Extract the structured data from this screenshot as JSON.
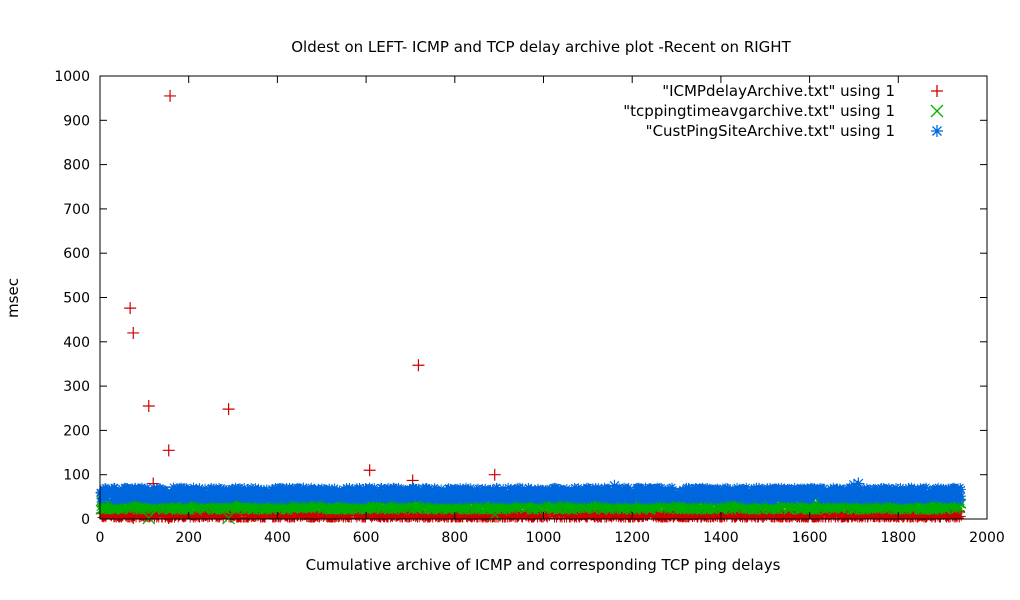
{
  "chart_data": {
    "type": "scatter",
    "title": "Oldest on LEFT- ICMP and TCP delay archive plot -Recent on RIGHT",
    "xlabel": "Cumulative archive of ICMP and corresponding TCP ping delays",
    "ylabel": "msec",
    "xlim": [
      0,
      2000
    ],
    "ylim": [
      0,
      1000
    ],
    "x_ticks": [
      0,
      200,
      400,
      600,
      800,
      1000,
      1200,
      1400,
      1600,
      1800,
      2000
    ],
    "y_ticks": [
      0,
      100,
      200,
      300,
      400,
      500,
      600,
      700,
      800,
      900,
      1000
    ],
    "x_tick_labels": [
      "0",
      "200",
      "400",
      "600",
      "800",
      "1000",
      "1200",
      "1400",
      "1600",
      "1800",
      "2000"
    ],
    "y_tick_labels": [
      "0",
      "100",
      "200",
      "300",
      "400",
      "500",
      "600",
      "700",
      "800",
      "900",
      "1000"
    ],
    "grid": false,
    "legend_position": "top-right",
    "series": [
      {
        "name": "\"ICMPdelayArchive.txt\" using 1",
        "marker": "plus",
        "color": "#cc0000",
        "band": {
          "x_start": 0,
          "x_end": 1940,
          "y_min": 0,
          "y_max": 20
        },
        "outliers": [
          {
            "x": 68,
            "y": 476
          },
          {
            "x": 75,
            "y": 420
          },
          {
            "x": 110,
            "y": 255
          },
          {
            "x": 155,
            "y": 155
          },
          {
            "x": 158,
            "y": 955
          },
          {
            "x": 290,
            "y": 248
          },
          {
            "x": 120,
            "y": 80
          },
          {
            "x": 608,
            "y": 110
          },
          {
            "x": 705,
            "y": 87
          },
          {
            "x": 718,
            "y": 347
          },
          {
            "x": 890,
            "y": 100
          },
          {
            "x": 75,
            "y": 0
          },
          {
            "x": 155,
            "y": 0
          }
        ]
      },
      {
        "name": "\"tcppingtimeavgarchive.txt\" using 1",
        "marker": "cross",
        "color": "#00b000",
        "band": {
          "x_start": 0,
          "x_end": 1940,
          "y_min": 20,
          "y_max": 42
        },
        "outliers": [
          {
            "x": 110,
            "y": 0
          },
          {
            "x": 290,
            "y": 0
          },
          {
            "x": 890,
            "y": 10
          }
        ]
      },
      {
        "name": "\"CustPingSiteArchive.txt\" using 1",
        "marker": "star",
        "color": "#0066dd",
        "band": {
          "x_start": 0,
          "x_end": 1940,
          "y_min": 42,
          "y_max": 72
        },
        "outliers": [
          {
            "x": 1160,
            "y": 75
          },
          {
            "x": 1260,
            "y": 66
          },
          {
            "x": 1700,
            "y": 77
          },
          {
            "x": 1710,
            "y": 80
          }
        ]
      }
    ]
  }
}
